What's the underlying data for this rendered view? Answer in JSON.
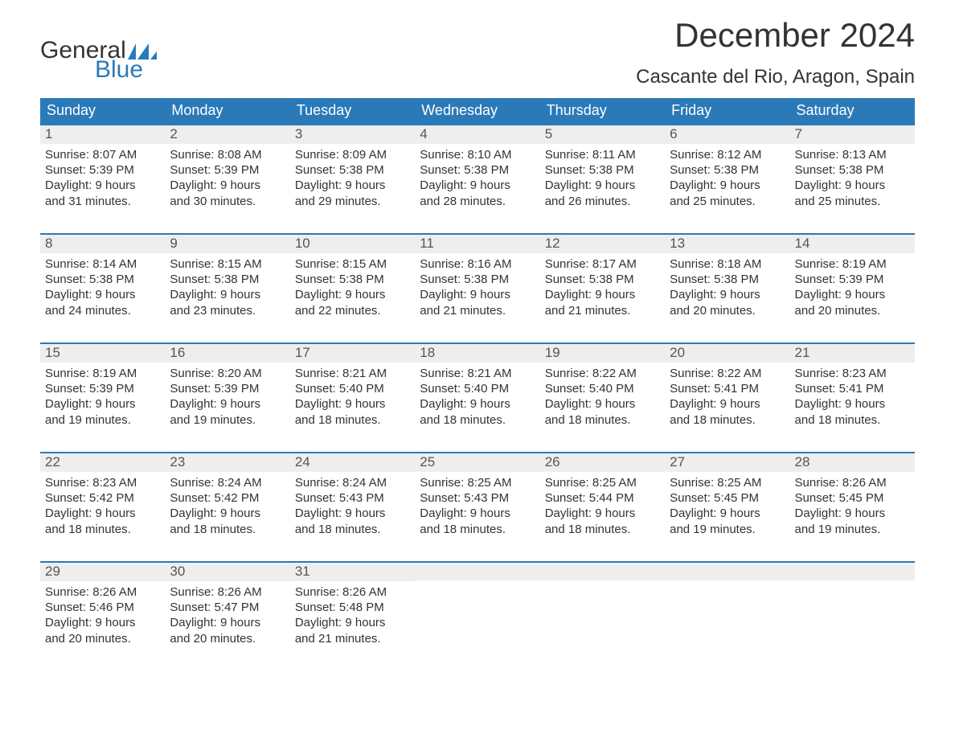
{
  "brand": {
    "name_part1": "General",
    "name_part2": "Blue",
    "flag_color": "#2a7ab9"
  },
  "title": "December 2024",
  "location": "Cascante del Rio, Aragon, Spain",
  "colors": {
    "header_bg": "#2a7ab9",
    "header_text": "#ffffff",
    "day_number_bg": "#eeeeee",
    "day_number_text": "#555555",
    "body_text": "#333333",
    "week_border": "#2a7ab9",
    "background": "#ffffff"
  },
  "typography": {
    "title_fontsize": 42,
    "location_fontsize": 24,
    "weekday_fontsize": 18,
    "daynum_fontsize": 17,
    "body_fontsize": 15
  },
  "weekdays": [
    "Sunday",
    "Monday",
    "Tuesday",
    "Wednesday",
    "Thursday",
    "Friday",
    "Saturday"
  ],
  "weeks": [
    [
      {
        "day": "1",
        "sunrise": "Sunrise: 8:07 AM",
        "sunset": "Sunset: 5:39 PM",
        "daylight1": "Daylight: 9 hours",
        "daylight2": "and 31 minutes."
      },
      {
        "day": "2",
        "sunrise": "Sunrise: 8:08 AM",
        "sunset": "Sunset: 5:39 PM",
        "daylight1": "Daylight: 9 hours",
        "daylight2": "and 30 minutes."
      },
      {
        "day": "3",
        "sunrise": "Sunrise: 8:09 AM",
        "sunset": "Sunset: 5:38 PM",
        "daylight1": "Daylight: 9 hours",
        "daylight2": "and 29 minutes."
      },
      {
        "day": "4",
        "sunrise": "Sunrise: 8:10 AM",
        "sunset": "Sunset: 5:38 PM",
        "daylight1": "Daylight: 9 hours",
        "daylight2": "and 28 minutes."
      },
      {
        "day": "5",
        "sunrise": "Sunrise: 8:11 AM",
        "sunset": "Sunset: 5:38 PM",
        "daylight1": "Daylight: 9 hours",
        "daylight2": "and 26 minutes."
      },
      {
        "day": "6",
        "sunrise": "Sunrise: 8:12 AM",
        "sunset": "Sunset: 5:38 PM",
        "daylight1": "Daylight: 9 hours",
        "daylight2": "and 25 minutes."
      },
      {
        "day": "7",
        "sunrise": "Sunrise: 8:13 AM",
        "sunset": "Sunset: 5:38 PM",
        "daylight1": "Daylight: 9 hours",
        "daylight2": "and 25 minutes."
      }
    ],
    [
      {
        "day": "8",
        "sunrise": "Sunrise: 8:14 AM",
        "sunset": "Sunset: 5:38 PM",
        "daylight1": "Daylight: 9 hours",
        "daylight2": "and 24 minutes."
      },
      {
        "day": "9",
        "sunrise": "Sunrise: 8:15 AM",
        "sunset": "Sunset: 5:38 PM",
        "daylight1": "Daylight: 9 hours",
        "daylight2": "and 23 minutes."
      },
      {
        "day": "10",
        "sunrise": "Sunrise: 8:15 AM",
        "sunset": "Sunset: 5:38 PM",
        "daylight1": "Daylight: 9 hours",
        "daylight2": "and 22 minutes."
      },
      {
        "day": "11",
        "sunrise": "Sunrise: 8:16 AM",
        "sunset": "Sunset: 5:38 PM",
        "daylight1": "Daylight: 9 hours",
        "daylight2": "and 21 minutes."
      },
      {
        "day": "12",
        "sunrise": "Sunrise: 8:17 AM",
        "sunset": "Sunset: 5:38 PM",
        "daylight1": "Daylight: 9 hours",
        "daylight2": "and 21 minutes."
      },
      {
        "day": "13",
        "sunrise": "Sunrise: 8:18 AM",
        "sunset": "Sunset: 5:38 PM",
        "daylight1": "Daylight: 9 hours",
        "daylight2": "and 20 minutes."
      },
      {
        "day": "14",
        "sunrise": "Sunrise: 8:19 AM",
        "sunset": "Sunset: 5:39 PM",
        "daylight1": "Daylight: 9 hours",
        "daylight2": "and 20 minutes."
      }
    ],
    [
      {
        "day": "15",
        "sunrise": "Sunrise: 8:19 AM",
        "sunset": "Sunset: 5:39 PM",
        "daylight1": "Daylight: 9 hours",
        "daylight2": "and 19 minutes."
      },
      {
        "day": "16",
        "sunrise": "Sunrise: 8:20 AM",
        "sunset": "Sunset: 5:39 PM",
        "daylight1": "Daylight: 9 hours",
        "daylight2": "and 19 minutes."
      },
      {
        "day": "17",
        "sunrise": "Sunrise: 8:21 AM",
        "sunset": "Sunset: 5:40 PM",
        "daylight1": "Daylight: 9 hours",
        "daylight2": "and 18 minutes."
      },
      {
        "day": "18",
        "sunrise": "Sunrise: 8:21 AM",
        "sunset": "Sunset: 5:40 PM",
        "daylight1": "Daylight: 9 hours",
        "daylight2": "and 18 minutes."
      },
      {
        "day": "19",
        "sunrise": "Sunrise: 8:22 AM",
        "sunset": "Sunset: 5:40 PM",
        "daylight1": "Daylight: 9 hours",
        "daylight2": "and 18 minutes."
      },
      {
        "day": "20",
        "sunrise": "Sunrise: 8:22 AM",
        "sunset": "Sunset: 5:41 PM",
        "daylight1": "Daylight: 9 hours",
        "daylight2": "and 18 minutes."
      },
      {
        "day": "21",
        "sunrise": "Sunrise: 8:23 AM",
        "sunset": "Sunset: 5:41 PM",
        "daylight1": "Daylight: 9 hours",
        "daylight2": "and 18 minutes."
      }
    ],
    [
      {
        "day": "22",
        "sunrise": "Sunrise: 8:23 AM",
        "sunset": "Sunset: 5:42 PM",
        "daylight1": "Daylight: 9 hours",
        "daylight2": "and 18 minutes."
      },
      {
        "day": "23",
        "sunrise": "Sunrise: 8:24 AM",
        "sunset": "Sunset: 5:42 PM",
        "daylight1": "Daylight: 9 hours",
        "daylight2": "and 18 minutes."
      },
      {
        "day": "24",
        "sunrise": "Sunrise: 8:24 AM",
        "sunset": "Sunset: 5:43 PM",
        "daylight1": "Daylight: 9 hours",
        "daylight2": "and 18 minutes."
      },
      {
        "day": "25",
        "sunrise": "Sunrise: 8:25 AM",
        "sunset": "Sunset: 5:43 PM",
        "daylight1": "Daylight: 9 hours",
        "daylight2": "and 18 minutes."
      },
      {
        "day": "26",
        "sunrise": "Sunrise: 8:25 AM",
        "sunset": "Sunset: 5:44 PM",
        "daylight1": "Daylight: 9 hours",
        "daylight2": "and 18 minutes."
      },
      {
        "day": "27",
        "sunrise": "Sunrise: 8:25 AM",
        "sunset": "Sunset: 5:45 PM",
        "daylight1": "Daylight: 9 hours",
        "daylight2": "and 19 minutes."
      },
      {
        "day": "28",
        "sunrise": "Sunrise: 8:26 AM",
        "sunset": "Sunset: 5:45 PM",
        "daylight1": "Daylight: 9 hours",
        "daylight2": "and 19 minutes."
      }
    ],
    [
      {
        "day": "29",
        "sunrise": "Sunrise: 8:26 AM",
        "sunset": "Sunset: 5:46 PM",
        "daylight1": "Daylight: 9 hours",
        "daylight2": "and 20 minutes."
      },
      {
        "day": "30",
        "sunrise": "Sunrise: 8:26 AM",
        "sunset": "Sunset: 5:47 PM",
        "daylight1": "Daylight: 9 hours",
        "daylight2": "and 20 minutes."
      },
      {
        "day": "31",
        "sunrise": "Sunrise: 8:26 AM",
        "sunset": "Sunset: 5:48 PM",
        "daylight1": "Daylight: 9 hours",
        "daylight2": "and 21 minutes."
      },
      null,
      null,
      null,
      null
    ]
  ]
}
